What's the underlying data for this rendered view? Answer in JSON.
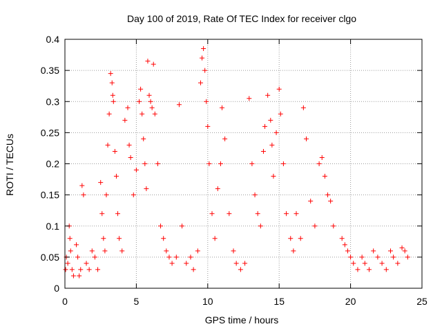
{
  "chart_data": {
    "type": "scatter",
    "title": "Day 100 of 2019, Rate Of TEC Index for receiver clgo",
    "xlabel": "GPS time / hours",
    "ylabel": "ROTI / TECUs",
    "xlim": [
      0,
      25
    ],
    "ylim": [
      0,
      0.4
    ],
    "x_ticks": [
      "0",
      "5",
      "10",
      "15",
      "20",
      "25"
    ],
    "y_ticks": [
      "0",
      "0.05",
      "0.1",
      "0.15",
      "0.2",
      "0.25",
      "0.3",
      "0.35",
      "0.4"
    ],
    "grid": true,
    "marker": "+",
    "point_color": "#ff0000",
    "series": [
      {
        "x": [
          0.05,
          0.1,
          0.2,
          0.3,
          0.35,
          0.4,
          0.5,
          0.6,
          0.8,
          0.9,
          1.0,
          1.1,
          1.2,
          1.3,
          1.5,
          1.7,
          1.9,
          2.1,
          2.3,
          2.5,
          2.6,
          2.7,
          2.8,
          2.9,
          3.0,
          3.1,
          3.2,
          3.3,
          3.35,
          3.4,
          3.5,
          3.6,
          3.7,
          3.8,
          4.0,
          4.2,
          4.4,
          4.5,
          4.6,
          4.8,
          5.0,
          5.2,
          5.3,
          5.4,
          5.5,
          5.6,
          5.7,
          5.8,
          5.9,
          6.0,
          6.1,
          6.2,
          6.3,
          6.5,
          6.7,
          6.9,
          7.1,
          7.3,
          7.5,
          7.8,
          8.0,
          8.2,
          8.5,
          8.8,
          9.0,
          9.3,
          9.5,
          9.6,
          9.7,
          9.8,
          9.9,
          10.0,
          10.1,
          10.3,
          10.5,
          10.7,
          10.9,
          11.0,
          11.2,
          11.5,
          11.8,
          12.0,
          12.3,
          12.6,
          12.9,
          13.1,
          13.3,
          13.5,
          13.7,
          13.9,
          14.0,
          14.2,
          14.4,
          14.5,
          14.6,
          14.8,
          15.0,
          15.1,
          15.3,
          15.5,
          15.8,
          16.0,
          16.2,
          16.5,
          16.7,
          16.9,
          17.2,
          17.5,
          17.8,
          18.0,
          18.2,
          18.4,
          18.6,
          18.8,
          19.4,
          19.6,
          19.8,
          20.0,
          20.2,
          20.5,
          20.8,
          21.0,
          21.3,
          21.6,
          21.9,
          22.2,
          22.5,
          22.8,
          23.0,
          23.3,
          23.6,
          23.8,
          24.0
        ],
        "y": [
          0.03,
          0.05,
          0.04,
          0.1,
          0.08,
          0.06,
          0.03,
          0.02,
          0.07,
          0.05,
          0.02,
          0.03,
          0.165,
          0.15,
          0.04,
          0.03,
          0.06,
          0.05,
          0.03,
          0.17,
          0.12,
          0.08,
          0.06,
          0.15,
          0.23,
          0.28,
          0.345,
          0.33,
          0.31,
          0.3,
          0.22,
          0.18,
          0.12,
          0.08,
          0.06,
          0.27,
          0.29,
          0.23,
          0.21,
          0.15,
          0.19,
          0.3,
          0.32,
          0.28,
          0.24,
          0.2,
          0.16,
          0.365,
          0.31,
          0.3,
          0.29,
          0.36,
          0.28,
          0.2,
          0.1,
          0.08,
          0.06,
          0.05,
          0.04,
          0.05,
          0.295,
          0.1,
          0.04,
          0.05,
          0.03,
          0.06,
          0.33,
          0.37,
          0.385,
          0.35,
          0.3,
          0.26,
          0.2,
          0.12,
          0.08,
          0.16,
          0.2,
          0.29,
          0.24,
          0.12,
          0.06,
          0.04,
          0.03,
          0.04,
          0.305,
          0.2,
          0.15,
          0.12,
          0.1,
          0.22,
          0.26,
          0.31,
          0.27,
          0.23,
          0.18,
          0.25,
          0.32,
          0.28,
          0.2,
          0.12,
          0.08,
          0.06,
          0.12,
          0.08,
          0.29,
          0.24,
          0.14,
          0.1,
          0.2,
          0.21,
          0.18,
          0.15,
          0.14,
          0.1,
          0.08,
          0.07,
          0.06,
          0.05,
          0.04,
          0.03,
          0.05,
          0.04,
          0.03,
          0.06,
          0.05,
          0.04,
          0.03,
          0.06,
          0.05,
          0.04,
          0.065,
          0.06,
          0.05
        ]
      }
    ]
  }
}
